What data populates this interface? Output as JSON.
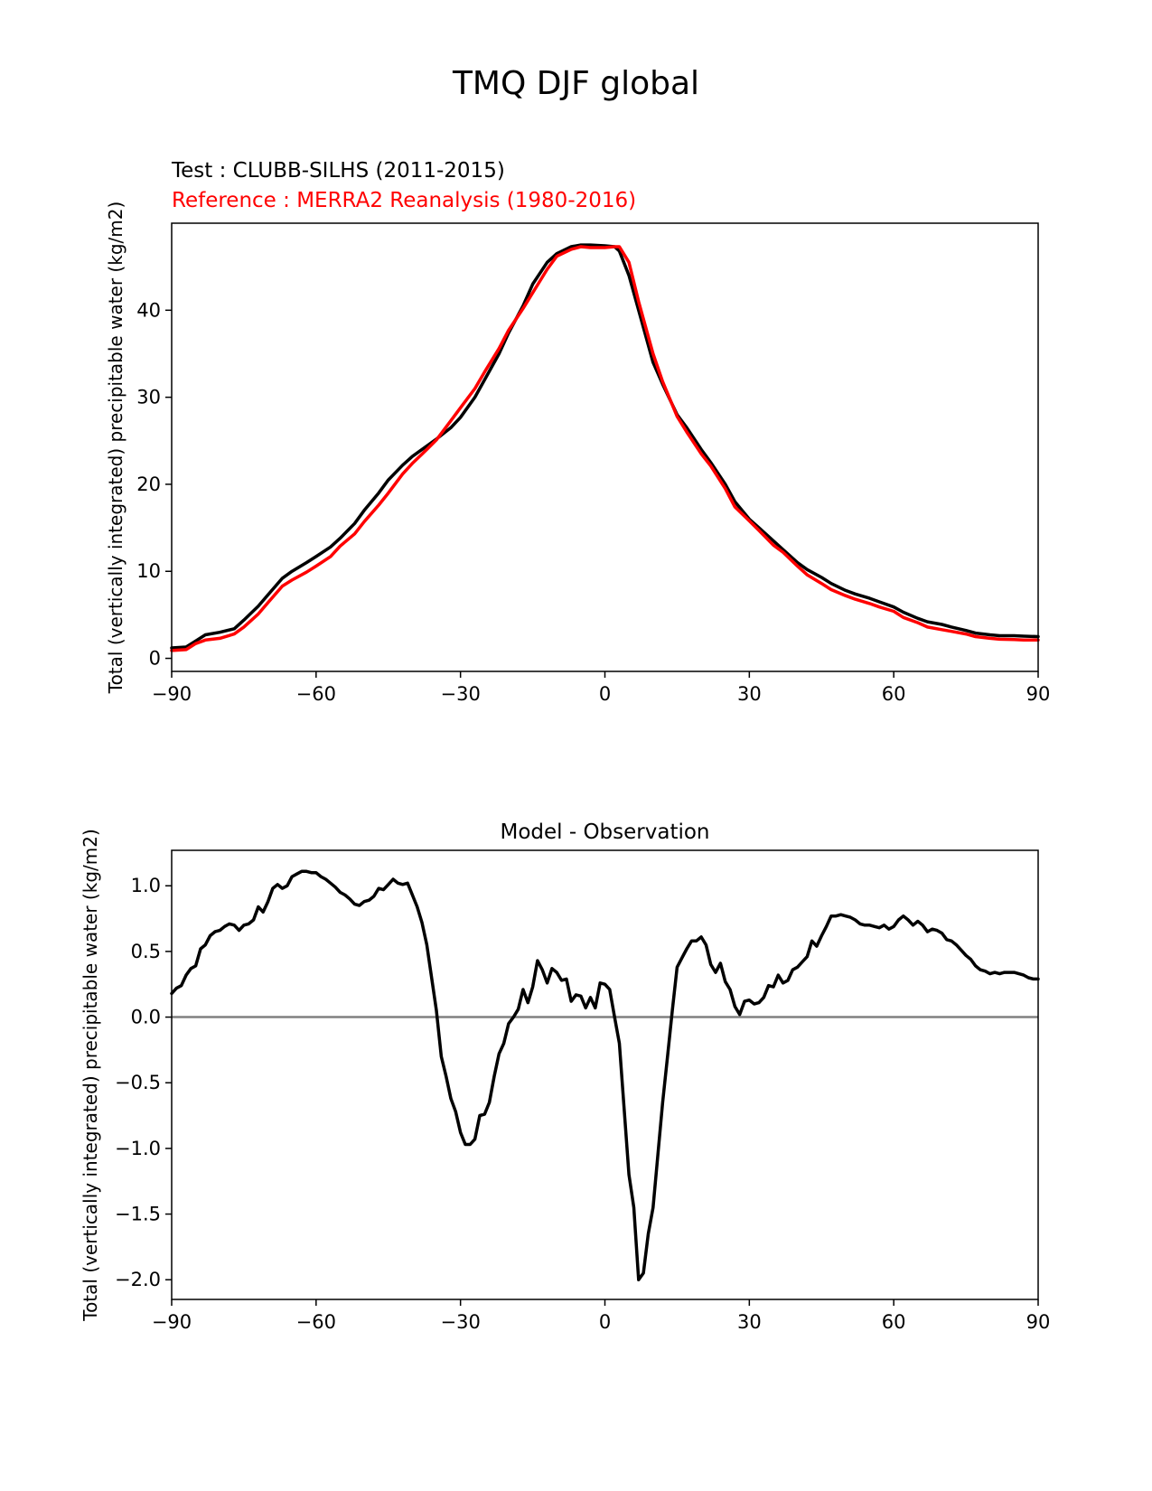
{
  "figure_title": "TMQ DJF global",
  "chart_data": [
    {
      "type": "line",
      "title_test": "Test : CLUBB-SILHS (2011-2015)",
      "title_reference": "Reference : MERRA2 Reanalysis (1980-2016)",
      "xlabel": "",
      "ylabel": "Total (vertically integrated) precipitable water (kg/m2)",
      "xlim": [
        -90,
        90
      ],
      "ylim": [
        -1.5,
        50
      ],
      "xticks": [
        -90,
        -60,
        -30,
        0,
        30,
        60,
        90
      ],
      "xtick_labels": [
        "−90",
        "−60",
        "−30",
        "0",
        "30",
        "60",
        "90"
      ],
      "yticks": [
        0,
        10,
        20,
        30,
        40
      ],
      "ytick_labels": [
        "0",
        "10",
        "20",
        "30",
        "40"
      ],
      "grid": false,
      "series": [
        {
          "name": "Test : CLUBB-SILHS (2011-2015)",
          "color": "#000000",
          "x": [
            -90,
            -87,
            -85,
            -83,
            -80,
            -77,
            -75,
            -72,
            -70,
            -67,
            -65,
            -62,
            -60,
            -57,
            -55,
            -52,
            -50,
            -47,
            -45,
            -42,
            -40,
            -37,
            -35,
            -32,
            -30,
            -27,
            -25,
            -22,
            -20,
            -17,
            -15,
            -12,
            -10,
            -7,
            -5,
            -3,
            0,
            2,
            3,
            5,
            7,
            10,
            12,
            15,
            17,
            20,
            22,
            25,
            27,
            30,
            32,
            35,
            37,
            40,
            42,
            45,
            47,
            50,
            52,
            55,
            57,
            60,
            62,
            65,
            67,
            70,
            72,
            75,
            77,
            80,
            82,
            85,
            87,
            90
          ],
          "y": [
            1.2,
            1.3,
            2,
            2.7,
            3,
            3.4,
            4.4,
            6,
            7.3,
            9.2,
            10,
            11,
            11.7,
            12.8,
            13.8,
            15.5,
            17,
            19,
            20.5,
            22.2,
            23.2,
            24.4,
            25.2,
            26.5,
            27.7,
            30,
            32,
            35,
            37.4,
            40.5,
            43,
            45.5,
            46.5,
            47.3,
            47.5,
            47.5,
            47.4,
            47.3,
            46.8,
            44,
            40,
            34,
            31.5,
            28,
            26.5,
            24,
            22.5,
            20,
            18,
            16,
            15,
            13.5,
            12.5,
            11,
            10.2,
            9.3,
            8.6,
            7.8,
            7.4,
            6.9,
            6.5,
            5.9,
            5.3,
            4.6,
            4.2,
            3.9,
            3.6,
            3.2,
            2.9,
            2.7,
            2.6,
            2.6,
            2.55,
            2.5
          ]
        },
        {
          "name": "Reference : MERRA2 Reanalysis (1980-2016)",
          "color": "#ff0000",
          "x": [
            -90,
            -87,
            -85,
            -83,
            -80,
            -77,
            -75,
            -72,
            -70,
            -67,
            -65,
            -62,
            -60,
            -57,
            -55,
            -52,
            -50,
            -47,
            -45,
            -42,
            -40,
            -37,
            -35,
            -32,
            -30,
            -27,
            -25,
            -22,
            -20,
            -17,
            -15,
            -12,
            -10,
            -7,
            -5,
            -3,
            0,
            2,
            3,
            5,
            7,
            10,
            12,
            15,
            17,
            20,
            22,
            25,
            27,
            30,
            32,
            35,
            37,
            40,
            42,
            45,
            47,
            50,
            52,
            55,
            57,
            60,
            62,
            65,
            67,
            70,
            72,
            75,
            77,
            80,
            82,
            85,
            87,
            90
          ],
          "y": [
            0.9,
            1,
            1.7,
            2.1,
            2.3,
            2.8,
            3.6,
            5.1,
            6.4,
            8.3,
            9,
            9.9,
            10.6,
            11.7,
            12.9,
            14.3,
            15.7,
            17.6,
            19,
            21.2,
            22.4,
            24,
            25.1,
            27.3,
            28.8,
            31,
            32.9,
            35.6,
            37.7,
            40.2,
            42,
            44.7,
            46.2,
            47,
            47.3,
            47.2,
            47.2,
            47.3,
            47.3,
            45.5,
            41,
            35,
            31.8,
            27.8,
            26,
            23.5,
            22.1,
            19.5,
            17.4,
            15.8,
            14.7,
            13,
            12.2,
            10.6,
            9.6,
            8.6,
            7.9,
            7.2,
            6.8,
            6.3,
            5.9,
            5.4,
            4.7,
            4.1,
            3.6,
            3.3,
            3.1,
            2.8,
            2.5,
            2.3,
            2.2,
            2.15,
            2.1,
            2.1
          ]
        }
      ]
    },
    {
      "type": "line",
      "title": "Model - Observation",
      "xlabel": "",
      "ylabel": "Total (vertically integrated) precipitable water (kg/m2)",
      "xlim": [
        -90,
        90
      ],
      "ylim": [
        -2.15,
        1.27
      ],
      "xticks": [
        -90,
        -60,
        -30,
        0,
        30,
        60,
        90
      ],
      "xtick_labels": [
        "−90",
        "−60",
        "−30",
        "0",
        "30",
        "60",
        "90"
      ],
      "yticks": [
        1.0,
        0.5,
        0.0,
        -0.5,
        -1.0,
        -1.5,
        -2.0
      ],
      "ytick_labels": [
        "1.0",
        "0.5",
        "0.0",
        "−0.5",
        "−1.0",
        "−1.5",
        "−2.0"
      ],
      "grid": false,
      "zero_line": {
        "y": 0,
        "color": "#808080"
      },
      "series": [
        {
          "name": "Model - Observation",
          "color": "#000000",
          "x": [
            -90,
            -89,
            -88,
            -87,
            -86,
            -85,
            -84,
            -83,
            -82,
            -81,
            -80,
            -79,
            -78,
            -77,
            -76,
            -75,
            -74,
            -73,
            -72,
            -71,
            -70,
            -69,
            -68,
            -67,
            -66,
            -65,
            -64,
            -63,
            -62,
            -61,
            -60,
            -59,
            -58,
            -57,
            -56,
            -55,
            -54,
            -53,
            -52,
            -51,
            -50,
            -49,
            -48,
            -47,
            -46,
            -45,
            -44,
            -43,
            -42,
            -41,
            -40,
            -39,
            -38,
            -37,
            -36,
            -35,
            -34,
            -33,
            -32,
            -31,
            -30,
            -29,
            -28,
            -27,
            -26,
            -25,
            -24,
            -23,
            -22,
            -21,
            -20,
            -19,
            -18,
            -17,
            -16,
            -15,
            -14,
            -13,
            -12,
            -11,
            -10,
            -9,
            -8,
            -7,
            -6,
            -5,
            -4,
            -3,
            -2,
            -1,
            0,
            1,
            2,
            3,
            4,
            5,
            6,
            7,
            8,
            9,
            10,
            11,
            12,
            13,
            14,
            15,
            16,
            17,
            18,
            19,
            20,
            21,
            22,
            23,
            24,
            25,
            26,
            27,
            28,
            29,
            30,
            31,
            32,
            33,
            34,
            35,
            36,
            37,
            38,
            39,
            40,
            41,
            42,
            43,
            44,
            45,
            46,
            47,
            48,
            49,
            50,
            51,
            52,
            53,
            54,
            55,
            56,
            57,
            58,
            59,
            60,
            61,
            62,
            63,
            64,
            65,
            66,
            67,
            68,
            69,
            70,
            71,
            72,
            73,
            74,
            75,
            76,
            77,
            78,
            79,
            80,
            81,
            82,
            83,
            84,
            85,
            86,
            87,
            88,
            89,
            90
          ],
          "y": [
            0.18,
            0.22,
            0.24,
            0.32,
            0.37,
            0.39,
            0.52,
            0.55,
            0.62,
            0.65,
            0.66,
            0.69,
            0.71,
            0.7,
            0.66,
            0.7,
            0.71,
            0.74,
            0.84,
            0.8,
            0.88,
            0.98,
            1.01,
            0.98,
            1.0,
            1.07,
            1.09,
            1.11,
            1.11,
            1.1,
            1.1,
            1.07,
            1.05,
            1.02,
            0.99,
            0.95,
            0.93,
            0.9,
            0.86,
            0.85,
            0.88,
            0.89,
            0.92,
            0.98,
            0.97,
            1.01,
            1.05,
            1.02,
            1.01,
            1.02,
            0.93,
            0.84,
            0.72,
            0.55,
            0.3,
            0.05,
            -0.3,
            -0.45,
            -0.62,
            -0.72,
            -0.88,
            -0.97,
            -0.97,
            -0.93,
            -0.75,
            -0.74,
            -0.65,
            -0.45,
            -0.28,
            -0.2,
            -0.05,
            0.0,
            0.06,
            0.21,
            0.11,
            0.23,
            0.43,
            0.36,
            0.26,
            0.37,
            0.34,
            0.28,
            0.29,
            0.12,
            0.17,
            0.16,
            0.07,
            0.15,
            0.07,
            0.26,
            0.25,
            0.21,
            0.0,
            -0.2,
            -0.7,
            -1.2,
            -1.45,
            -2.0,
            -1.95,
            -1.65,
            -1.45,
            -1.05,
            -0.65,
            -0.3,
            0.05,
            0.38,
            0.45,
            0.52,
            0.58,
            0.58,
            0.61,
            0.55,
            0.4,
            0.34,
            0.41,
            0.27,
            0.21,
            0.08,
            0.02,
            0.12,
            0.13,
            0.1,
            0.11,
            0.15,
            0.24,
            0.23,
            0.32,
            0.26,
            0.28,
            0.36,
            0.38,
            0.42,
            0.46,
            0.58,
            0.54,
            0.62,
            0.69,
            0.77,
            0.77,
            0.78,
            0.77,
            0.76,
            0.74,
            0.71,
            0.7,
            0.7,
            0.69,
            0.68,
            0.7,
            0.67,
            0.69,
            0.74,
            0.77,
            0.74,
            0.7,
            0.73,
            0.7,
            0.65,
            0.67,
            0.66,
            0.64,
            0.59,
            0.58,
            0.55,
            0.51,
            0.47,
            0.44,
            0.39,
            0.36,
            0.35,
            0.33,
            0.34,
            0.33,
            0.34,
            0.34,
            0.34,
            0.33,
            0.32,
            0.3,
            0.29,
            0.29
          ]
        }
      ]
    }
  ]
}
